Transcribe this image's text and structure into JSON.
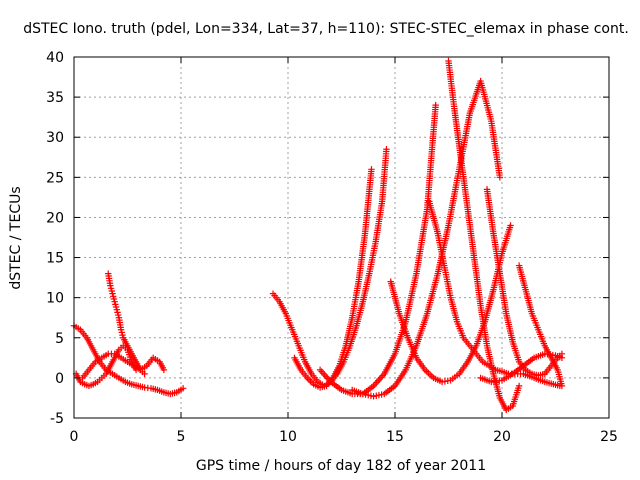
{
  "chart_data": {
    "type": "scatter",
    "title": "dSTEC Iono. truth (pdel, Lon=334, Lat=37, h=110): STEC-STEC_elemax in phase cont.",
    "xlabel": "GPS time / hours of day 182 of year 2011",
    "ylabel": "dSTEC  / TECUs",
    "xlim": [
      0,
      25
    ],
    "ylim": [
      -5,
      40
    ],
    "xticks": [
      0,
      5,
      10,
      15,
      20,
      25
    ],
    "yticks": [
      -5,
      0,
      5,
      10,
      15,
      20,
      25,
      30,
      35,
      40
    ],
    "grid": true,
    "marker": "+",
    "color": "#ff0000",
    "series": [
      {
        "x": [
          0.0,
          0.3,
          0.6,
          0.9,
          1.2,
          1.5,
          1.8,
          2.1,
          2.4,
          2.7,
          3.0,
          3.3,
          3.6,
          3.9,
          4.2,
          4.5,
          4.8,
          5.1
        ],
        "y": [
          6.5,
          6.0,
          5.0,
          3.5,
          2.0,
          1.0,
          0.5,
          0.0,
          -0.5,
          -0.8,
          -1.0,
          -1.2,
          -1.3,
          -1.5,
          -1.8,
          -2.0,
          -1.8,
          -1.3
        ]
      },
      {
        "x": [
          0.1,
          0.3,
          0.5,
          0.7,
          0.9,
          1.1,
          1.3,
          1.5,
          1.7,
          1.9,
          2.1,
          2.3,
          2.5,
          2.7,
          2.9
        ],
        "y": [
          0.5,
          -0.5,
          -0.8,
          -1.0,
          -0.8,
          -0.5,
          0.0,
          0.5,
          1.5,
          2.5,
          3.5,
          4.0,
          3.5,
          2.0,
          1.0
        ]
      },
      {
        "x": [
          1.6,
          1.7,
          1.8,
          1.9,
          2.0,
          2.1,
          2.2,
          2.3,
          2.5,
          2.7,
          2.9,
          3.1,
          3.3
        ],
        "y": [
          13.0,
          11.5,
          10.5,
          9.5,
          8.5,
          7.5,
          6.0,
          5.0,
          4.0,
          3.0,
          2.0,
          1.0,
          0.5
        ]
      },
      {
        "x": [
          0.4,
          0.7,
          1.0,
          1.3,
          1.6,
          1.9,
          2.2,
          2.5,
          2.8,
          3.1,
          3.4,
          3.7,
          4.0,
          4.2
        ],
        "y": [
          0.0,
          1.0,
          2.0,
          2.5,
          3.0,
          3.0,
          2.5,
          2.0,
          1.5,
          1.0,
          1.5,
          2.5,
          2.0,
          1.0
        ]
      },
      {
        "x": [
          9.3,
          9.6,
          9.9,
          10.2,
          10.5,
          10.8,
          11.1,
          11.4,
          11.7,
          12.0,
          12.3,
          12.6,
          12.9,
          13.2,
          13.5,
          13.8,
          14.1,
          14.4,
          14.6
        ],
        "y": [
          10.5,
          9.5,
          8.0,
          6.0,
          4.0,
          2.0,
          0.5,
          -0.5,
          -1.0,
          -0.5,
          0.5,
          2.0,
          4.0,
          6.5,
          9.5,
          13.0,
          17.0,
          22.0,
          28.5
        ]
      },
      {
        "x": [
          10.3,
          10.6,
          10.9,
          11.2,
          11.5,
          11.8,
          12.1,
          12.4,
          12.7,
          13.0,
          13.3,
          13.6,
          13.9
        ],
        "y": [
          2.5,
          1.0,
          0.0,
          -0.8,
          -1.2,
          -1.0,
          0.0,
          1.5,
          4.0,
          7.5,
          12.0,
          18.0,
          26.0
        ]
      },
      {
        "x": [
          11.5,
          12.0,
          12.5,
          13.0,
          13.5,
          14.0,
          14.5,
          15.0,
          15.5,
          16.0,
          16.5,
          16.9
        ],
        "y": [
          1.0,
          -0.5,
          -1.5,
          -2.0,
          -2.0,
          -1.0,
          0.5,
          3.0,
          7.0,
          13.0,
          21.0,
          34.0
        ]
      },
      {
        "x": [
          14.8,
          15.2,
          15.6,
          16.0,
          16.4,
          16.8,
          17.2,
          17.6,
          18.0,
          18.4,
          18.8,
          19.2,
          19.6,
          20.0,
          20.4
        ],
        "y": [
          12.0,
          8.0,
          5.0,
          2.5,
          1.0,
          0.0,
          -0.5,
          -0.3,
          0.5,
          2.0,
          4.0,
          7.0,
          11.0,
          15.5,
          19.0
        ]
      },
      {
        "x": [
          13.0,
          13.5,
          14.0,
          14.5,
          15.0,
          15.5,
          16.0,
          16.5,
          17.0,
          17.5,
          18.0,
          18.5,
          19.0,
          19.5,
          19.9
        ],
        "y": [
          -1.5,
          -2.0,
          -2.3,
          -2.0,
          -1.0,
          1.0,
          4.0,
          8.0,
          13.0,
          19.0,
          26.0,
          33.0,
          37.0,
          32.0,
          25.0
        ]
      },
      {
        "x": [
          16.6,
          17.0,
          17.3,
          17.6,
          17.9,
          18.2,
          18.5,
          18.8,
          19.1,
          19.4,
          19.7,
          20.0,
          20.3,
          20.6,
          21.0,
          21.5,
          22.0,
          22.7
        ],
        "y": [
          22.0,
          18.0,
          14.0,
          10.0,
          7.0,
          5.0,
          4.0,
          3.0,
          2.0,
          1.5,
          1.0,
          0.8,
          0.5,
          0.5,
          0.5,
          0.0,
          -0.5,
          -1.0
        ]
      },
      {
        "x": [
          17.5,
          17.8,
          18.1,
          18.4,
          18.7,
          19.0,
          19.3,
          19.6,
          19.9,
          20.2,
          20.5,
          20.8
        ],
        "y": [
          39.5,
          33.0,
          27.0,
          21.0,
          15.0,
          9.0,
          4.0,
          0.5,
          -2.5,
          -4.0,
          -3.5,
          -1.0
        ]
      },
      {
        "x": [
          19.3,
          19.6,
          19.9,
          20.2,
          20.5,
          20.8,
          21.1,
          21.4,
          21.7,
          22.0,
          22.3,
          22.6,
          22.8
        ],
        "y": [
          23.5,
          18.0,
          13.0,
          8.0,
          4.5,
          2.0,
          1.0,
          0.5,
          0.3,
          0.5,
          1.5,
          2.5,
          3.0
        ]
      },
      {
        "x": [
          20.8,
          21.1,
          21.4,
          21.7,
          22.0,
          22.3,
          22.6,
          22.8
        ],
        "y": [
          14.0,
          11.0,
          8.0,
          6.0,
          4.0,
          2.5,
          1.0,
          -1.0
        ]
      },
      {
        "x": [
          19.0,
          19.5,
          20.0,
          20.5,
          21.0,
          21.5,
          22.0,
          22.5,
          22.8
        ],
        "y": [
          0.0,
          -0.5,
          -0.3,
          0.5,
          1.5,
          2.5,
          3.0,
          2.8,
          2.5
        ]
      }
    ]
  }
}
